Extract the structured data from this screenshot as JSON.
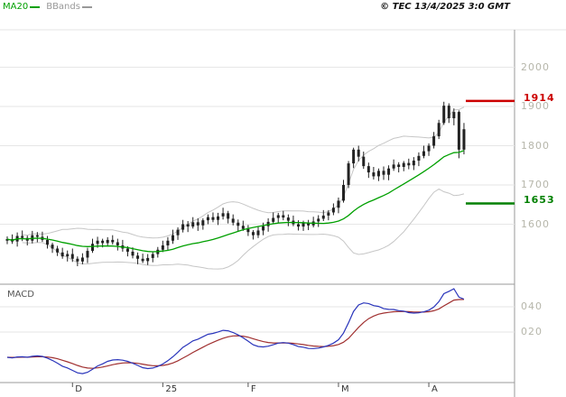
{
  "header": {
    "legend": [
      {
        "label": "MA20",
        "color": "#00a000"
      },
      {
        "label": "BBands",
        "color": "#999999"
      }
    ],
    "copyright": "© TEC 13/4/2025 3:0 GMT"
  },
  "colors": {
    "background": "#ffffff",
    "candle": "#222222",
    "grid": "#e6e6e6",
    "frame": "#9a9a9a",
    "axis_label": "#b6b6aa",
    "time_label": "#333333"
  },
  "chart_data": {
    "type": "candlestick",
    "title": "",
    "price_axis": {
      "ylim": [
        1447,
        2095
      ],
      "ticks": [
        {
          "label": "2000",
          "value": 2000
        },
        {
          "label": "1900",
          "value": 1900
        },
        {
          "label": "1800",
          "value": 1800
        },
        {
          "label": "1700",
          "value": 1700
        },
        {
          "label": "1600",
          "value": 1600
        }
      ]
    },
    "levels": [
      {
        "name": "resistance",
        "label": "1914",
        "value": 1914,
        "color": "#cc0000"
      },
      {
        "name": "support",
        "label": "1653",
        "value": 1653,
        "color": "#008000"
      }
    ],
    "time_axis": [
      {
        "label": "D",
        "index": 13
      },
      {
        "label": "25",
        "index": 31
      },
      {
        "label": "F",
        "index": 48
      },
      {
        "label": "M",
        "index": 66
      },
      {
        "label": "A",
        "index": 84
      }
    ],
    "overlays": [
      {
        "name": "MA20",
        "type": "sma",
        "period": 20,
        "color": "#00a000"
      },
      {
        "name": "BBands",
        "type": "bollinger",
        "period": 20,
        "stddev": 2,
        "color": "#c6c6c6"
      }
    ],
    "macd": {
      "label": "MACD",
      "params": [
        12,
        26,
        9
      ],
      "line_color": "#2a35bb",
      "signal_color": "#a03030",
      "axis_ticks": [
        {
          "label": "040",
          "value": 40
        },
        {
          "label": "020",
          "value": 20
        }
      ]
    },
    "candles": [
      [
        1558,
        1569,
        1549,
        1562
      ],
      [
        1562,
        1574,
        1550,
        1556
      ],
      [
        1556,
        1579,
        1543,
        1570
      ],
      [
        1570,
        1584,
        1557,
        1565
      ],
      [
        1565,
        1571,
        1546,
        1558
      ],
      [
        1558,
        1583,
        1551,
        1572
      ],
      [
        1572,
        1580,
        1554,
        1568
      ],
      [
        1568,
        1581,
        1555,
        1560
      ],
      [
        1560,
        1570,
        1538,
        1548
      ],
      [
        1548,
        1553,
        1527,
        1538
      ],
      [
        1538,
        1545,
        1519,
        1528
      ],
      [
        1528,
        1540,
        1512,
        1518
      ],
      [
        1518,
        1533,
        1505,
        1524
      ],
      [
        1524,
        1538,
        1504,
        1512
      ],
      [
        1512,
        1518,
        1493,
        1505
      ],
      [
        1505,
        1526,
        1498,
        1515
      ],
      [
        1515,
        1540,
        1501,
        1532
      ],
      [
        1532,
        1563,
        1527,
        1550
      ],
      [
        1550,
        1568,
        1540,
        1558
      ],
      [
        1558,
        1563,
        1541,
        1552
      ],
      [
        1552,
        1567,
        1543,
        1560
      ],
      [
        1560,
        1572,
        1548,
        1554
      ],
      [
        1554,
        1563,
        1533,
        1546
      ],
      [
        1546,
        1560,
        1530,
        1538
      ],
      [
        1538,
        1544,
        1518,
        1530
      ],
      [
        1530,
        1541,
        1513,
        1520
      ],
      [
        1520,
        1528,
        1498,
        1512
      ],
      [
        1512,
        1525,
        1501,
        1506
      ],
      [
        1506,
        1524,
        1496,
        1514
      ],
      [
        1514,
        1529,
        1503,
        1524
      ],
      [
        1524,
        1542,
        1515,
        1535
      ],
      [
        1535,
        1558,
        1529,
        1546
      ],
      [
        1546,
        1567,
        1533,
        1558
      ],
      [
        1558,
        1586,
        1550,
        1572
      ],
      [
        1572,
        1592,
        1560,
        1586
      ],
      [
        1586,
        1611,
        1579,
        1600
      ],
      [
        1600,
        1608,
        1580,
        1594
      ],
      [
        1594,
        1618,
        1589,
        1605
      ],
      [
        1605,
        1615,
        1583,
        1597
      ],
      [
        1597,
        1615,
        1586,
        1610
      ],
      [
        1610,
        1625,
        1600,
        1618
      ],
      [
        1618,
        1630,
        1605,
        1611
      ],
      [
        1611,
        1629,
        1598,
        1620
      ],
      [
        1620,
        1642,
        1612,
        1628
      ],
      [
        1628,
        1634,
        1602,
        1614
      ],
      [
        1614,
        1625,
        1597,
        1604
      ],
      [
        1604,
        1612,
        1582,
        1596
      ],
      [
        1596,
        1609,
        1583,
        1588
      ],
      [
        1588,
        1598,
        1570,
        1580
      ],
      [
        1580,
        1585,
        1561,
        1572
      ],
      [
        1572,
        1595,
        1565,
        1584
      ],
      [
        1584,
        1604,
        1572,
        1595
      ],
      [
        1595,
        1615,
        1581,
        1606
      ],
      [
        1606,
        1630,
        1600,
        1616
      ],
      [
        1616,
        1629,
        1604,
        1623
      ],
      [
        1623,
        1634,
        1610,
        1617
      ],
      [
        1617,
        1625,
        1595,
        1609
      ],
      [
        1609,
        1622,
        1595,
        1600
      ],
      [
        1600,
        1610,
        1584,
        1594
      ],
      [
        1594,
        1609,
        1583,
        1604
      ],
      [
        1604,
        1611,
        1585,
        1597
      ],
      [
        1597,
        1619,
        1592,
        1607
      ],
      [
        1607,
        1623,
        1593,
        1614
      ],
      [
        1614,
        1636,
        1608,
        1622
      ],
      [
        1622,
        1636,
        1610,
        1630
      ],
      [
        1630,
        1653,
        1623,
        1642
      ],
      [
        1642,
        1668,
        1628,
        1660
      ],
      [
        1660,
        1713,
        1655,
        1700
      ],
      [
        1700,
        1761,
        1692,
        1755
      ],
      [
        1755,
        1795,
        1743,
        1790
      ],
      [
        1790,
        1800,
        1760,
        1772
      ],
      [
        1772,
        1785,
        1741,
        1748
      ],
      [
        1748,
        1757,
        1718,
        1732
      ],
      [
        1732,
        1746,
        1714,
        1722
      ],
      [
        1722,
        1742,
        1710,
        1736
      ],
      [
        1736,
        1747,
        1713,
        1726
      ],
      [
        1726,
        1750,
        1712,
        1742
      ],
      [
        1742,
        1765,
        1736,
        1752
      ],
      [
        1752,
        1758,
        1732,
        1746
      ],
      [
        1746,
        1761,
        1735,
        1756
      ],
      [
        1756,
        1767,
        1740,
        1750
      ],
      [
        1750,
        1771,
        1738,
        1762
      ],
      [
        1762,
        1783,
        1748,
        1774
      ],
      [
        1774,
        1800,
        1768,
        1786
      ],
      [
        1786,
        1806,
        1774,
        1800
      ],
      [
        1800,
        1835,
        1793,
        1824
      ],
      [
        1824,
        1866,
        1817,
        1858
      ],
      [
        1858,
        1912,
        1853,
        1902
      ],
      [
        1902,
        1908,
        1858,
        1870
      ],
      [
        1870,
        1895,
        1852,
        1886
      ],
      [
        1886,
        1890,
        1768,
        1790
      ],
      [
        1790,
        1858,
        1778,
        1842
      ]
    ]
  }
}
